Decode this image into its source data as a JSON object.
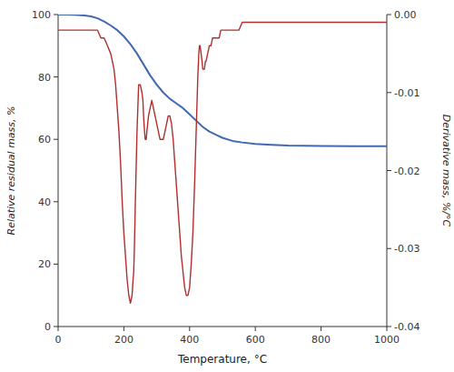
{
  "chart_data": {
    "type": "line",
    "xlabel": "Temperature, °C",
    "ylabel": "Relative residual mass, %",
    "y2label": "Derivative mass, %/°C",
    "xlim": [
      0,
      1000
    ],
    "ylim": [
      0,
      100
    ],
    "y2lim": [
      -0.04,
      0
    ],
    "xticks": [
      0,
      200,
      400,
      600,
      800,
      1000
    ],
    "yticks": [
      0,
      20,
      40,
      60,
      80,
      100
    ],
    "y2ticks": [
      -0.04,
      -0.03,
      -0.02,
      -0.01,
      {
        "value": 0,
        "label": "0.00"
      }
    ],
    "series": [
      {
        "color": "#4169b0",
        "x": [
          0,
          25,
          50,
          80,
          100,
          120,
          140,
          160,
          180,
          200,
          220,
          240,
          260,
          280,
          300,
          320,
          340,
          360,
          380,
          400,
          420,
          440,
          460,
          480,
          500,
          530,
          560,
          600,
          650,
          700,
          800,
          900,
          1000
        ],
        "values": [
          100,
          100,
          99.9,
          99.7,
          99.4,
          98.8,
          97.8,
          96.5,
          95.0,
          93.0,
          90.5,
          87.5,
          84.0,
          80.5,
          77.5,
          75.0,
          73.0,
          71.5,
          70.0,
          68.0,
          66.0,
          64.0,
          62.5,
          61.5,
          60.5,
          59.5,
          59.0,
          58.5,
          58.2,
          58.0,
          57.9,
          57.8,
          57.8
        ]
      },
      {
        "color": "#b03030",
        "axis": "y2",
        "x": [
          0,
          30,
          50,
          60,
          70,
          80,
          90,
          100,
          110,
          120,
          130,
          140,
          150,
          160,
          165,
          170,
          175,
          180,
          185,
          190,
          195,
          200,
          205,
          210,
          215,
          220,
          225,
          228,
          230,
          232,
          235,
          240,
          245,
          250,
          255,
          258,
          260,
          263,
          265,
          268,
          270,
          275,
          280,
          285,
          290,
          295,
          300,
          305,
          310,
          315,
          320,
          325,
          330,
          335,
          340,
          345,
          350,
          355,
          360,
          365,
          370,
          375,
          380,
          385,
          390,
          395,
          400,
          405,
          410,
          415,
          420,
          425,
          428,
          430,
          432,
          435,
          438,
          440,
          443,
          445,
          448,
          450,
          455,
          460,
          465,
          470,
          475,
          480,
          485,
          490,
          495,
          500,
          510,
          520,
          530,
          540,
          550,
          560,
          570,
          580,
          590,
          600,
          620,
          640,
          660,
          680,
          700,
          750,
          800,
          850,
          900,
          950,
          1000
        ],
        "values": [
          -0.002,
          -0.002,
          -0.002,
          -0.002,
          -0.002,
          -0.002,
          -0.002,
          -0.002,
          -0.002,
          -0.002,
          -0.003,
          -0.003,
          -0.004,
          -0.005,
          -0.006,
          -0.007,
          -0.009,
          -0.012,
          -0.015,
          -0.019,
          -0.024,
          -0.028,
          -0.031,
          -0.034,
          -0.036,
          -0.037,
          -0.036,
          -0.034,
          -0.033,
          -0.03,
          -0.024,
          -0.015,
          -0.009,
          -0.009,
          -0.01,
          -0.011,
          -0.013,
          -0.015,
          -0.016,
          -0.016,
          -0.015,
          -0.013,
          -0.012,
          -0.011,
          -0.012,
          -0.013,
          -0.014,
          -0.015,
          -0.016,
          -0.016,
          -0.016,
          -0.015,
          -0.014,
          -0.013,
          -0.013,
          -0.014,
          -0.016,
          -0.019,
          -0.022,
          -0.025,
          -0.028,
          -0.031,
          -0.033,
          -0.035,
          -0.036,
          -0.036,
          -0.035,
          -0.032,
          -0.028,
          -0.022,
          -0.015,
          -0.008,
          -0.005,
          -0.004,
          -0.004,
          -0.005,
          -0.006,
          -0.007,
          -0.007,
          -0.007,
          -0.006,
          -0.006,
          -0.005,
          -0.004,
          -0.004,
          -0.003,
          -0.003,
          -0.003,
          -0.003,
          -0.003,
          -0.002,
          -0.002,
          -0.002,
          -0.002,
          -0.002,
          -0.002,
          -0.002,
          -0.001,
          -0.001,
          -0.001,
          -0.001,
          -0.001,
          -0.001,
          -0.001,
          -0.001,
          -0.001,
          -0.001,
          -0.001,
          -0.001,
          -0.001,
          -0.001,
          -0.001,
          -0.001
        ]
      }
    ]
  }
}
